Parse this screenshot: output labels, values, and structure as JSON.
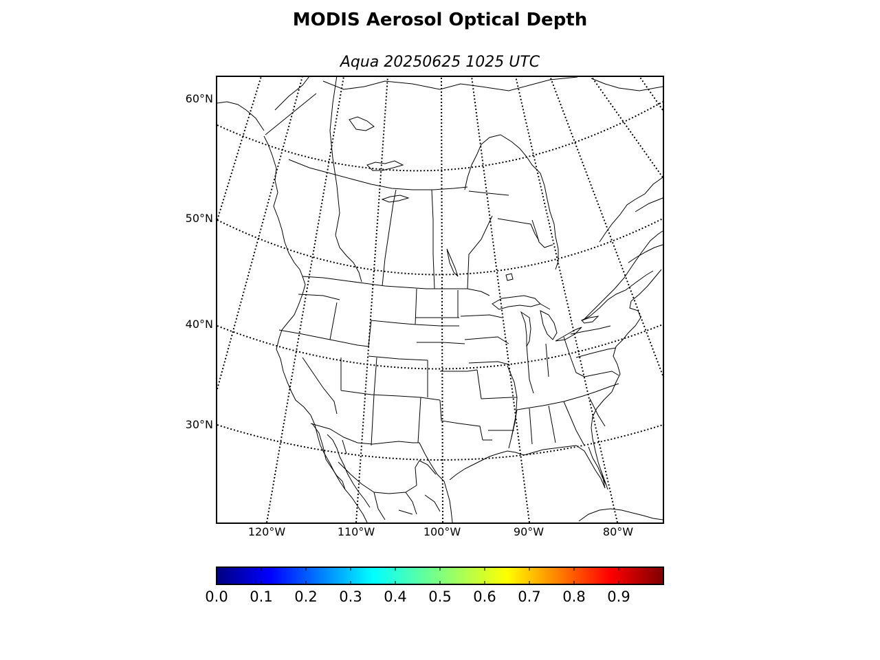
{
  "title": "MODIS Aerosol Optical Depth",
  "subtitle": "Aqua 20250625 1025 UTC",
  "map": {
    "projection": "lambert-conformal",
    "extent": {
      "lon_min": -126,
      "lon_max": -75,
      "lat_min": 21,
      "lat_max": 62
    },
    "coastlines": true,
    "state_borders": true,
    "country_borders": true,
    "graticule_style": "dotted",
    "lat_labels": [
      {
        "value": 60,
        "text": "60°N"
      },
      {
        "value": 50,
        "text": "50°N"
      },
      {
        "value": 40,
        "text": "40°N"
      },
      {
        "value": 30,
        "text": "30°N"
      }
    ],
    "lon_labels": [
      {
        "value": -120,
        "text": "120°W"
      },
      {
        "value": -110,
        "text": "110°W"
      },
      {
        "value": -100,
        "text": "100°W"
      },
      {
        "value": -90,
        "text": "90°W"
      },
      {
        "value": -80,
        "text": "80°W"
      }
    ]
  },
  "colorbar": {
    "colormap": "jet",
    "range": [
      0.0,
      1.0
    ],
    "colors": [
      "#00007f",
      "#0000ff",
      "#007fff",
      "#00ffff",
      "#7fff7f",
      "#ffff00",
      "#ff7f00",
      "#ff0000",
      "#7f0000"
    ],
    "ticks": [
      {
        "value": 0.0,
        "text": "0.0"
      },
      {
        "value": 0.1,
        "text": "0.1"
      },
      {
        "value": 0.2,
        "text": "0.2"
      },
      {
        "value": 0.3,
        "text": "0.3"
      },
      {
        "value": 0.4,
        "text": "0.4"
      },
      {
        "value": 0.5,
        "text": "0.5"
      },
      {
        "value": 0.6,
        "text": "0.6"
      },
      {
        "value": 0.7,
        "text": "0.7"
      },
      {
        "value": 0.8,
        "text": "0.8"
      },
      {
        "value": 0.9,
        "text": "0.9"
      }
    ]
  }
}
